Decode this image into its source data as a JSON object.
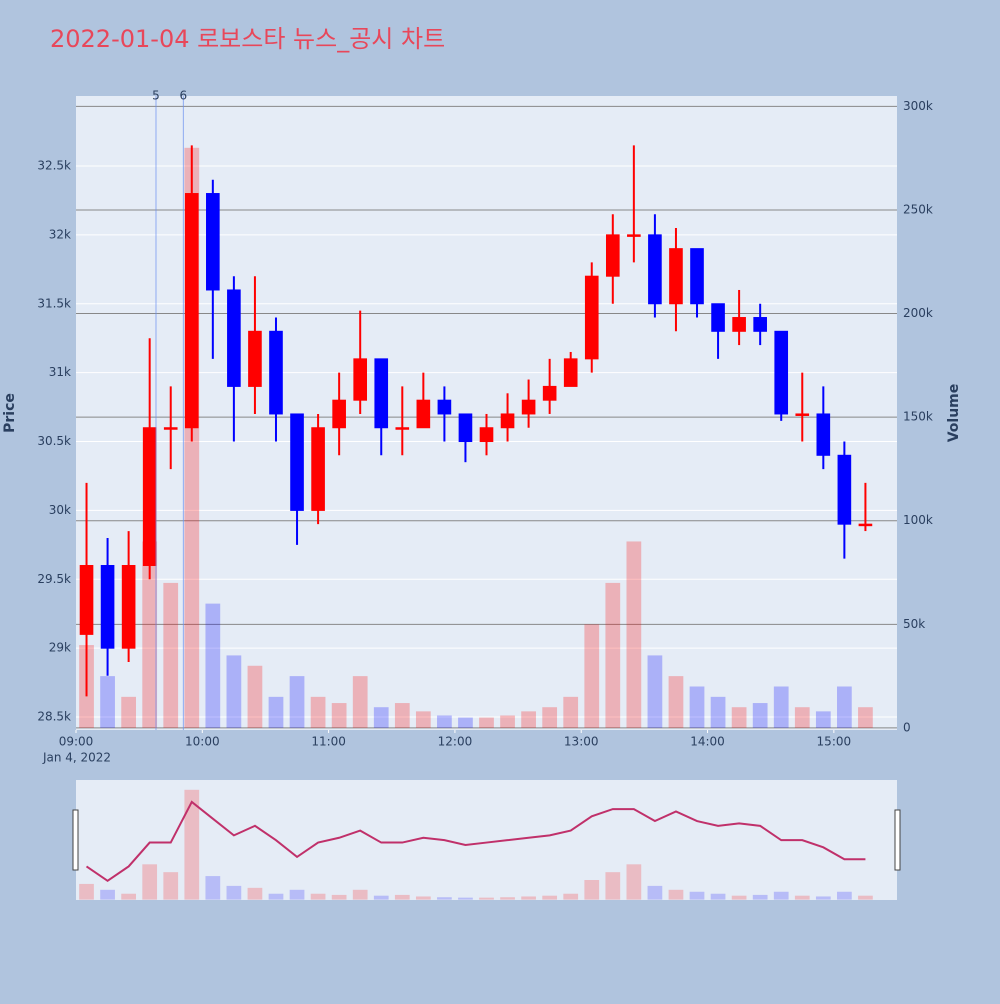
{
  "chart_data": {
    "type": "candlestick",
    "title": "2022-01-04 로보스타 뉴스_공시 차트",
    "y_label": "Price",
    "y2_label": "Volume",
    "x_sublabel": "Jan 4, 2022",
    "increasing_color": "#ff0000",
    "decreasing_color": "#0000ff",
    "x": [
      "2022-01-04 09:00",
      "2022-01-04 09:10",
      "2022-01-04 09:20",
      "2022-01-04 09:30",
      "2022-01-04 09:40",
      "2022-01-04 09:50",
      "2022-01-04 10:00",
      "2022-01-04 10:10",
      "2022-01-04 10:20",
      "2022-01-04 10:30",
      "2022-01-04 10:40",
      "2022-01-04 10:50",
      "2022-01-04 11:00",
      "2022-01-04 11:10",
      "2022-01-04 11:20",
      "2022-01-04 11:30",
      "2022-01-04 11:40",
      "2022-01-04 11:50",
      "2022-01-04 12:00",
      "2022-01-04 12:10",
      "2022-01-04 12:20",
      "2022-01-04 12:30",
      "2022-01-04 12:40",
      "2022-01-04 12:50",
      "2022-01-04 13:00",
      "2022-01-04 13:10",
      "2022-01-04 13:20",
      "2022-01-04 13:30",
      "2022-01-04 13:40",
      "2022-01-04 13:50",
      "2022-01-04 14:00",
      "2022-01-04 14:10",
      "2022-01-04 14:20",
      "2022-01-04 14:30",
      "2022-01-04 14:40",
      "2022-01-04 14:50",
      "2022-01-04 15:00",
      "2022-01-04 15:10"
    ],
    "open": [
      29100,
      29600,
      29000,
      29600,
      30600,
      30600,
      32300,
      31600,
      30900,
      31300,
      30700,
      30000,
      30600,
      30800,
      31100,
      30600,
      30600,
      30800,
      30700,
      30500,
      30600,
      30700,
      30800,
      30900,
      31100,
      31700,
      32000,
      32000,
      31500,
      31900,
      31500,
      31300,
      31400,
      31300,
      30700,
      30700,
      30400,
      29900
    ],
    "high": [
      30200,
      29800,
      29850,
      31250,
      30900,
      32650,
      32400,
      31700,
      31700,
      31400,
      30700,
      30700,
      31000,
      31450,
      31100,
      30900,
      31000,
      30900,
      30700,
      30700,
      30850,
      30950,
      31100,
      31150,
      31800,
      32150,
      32650,
      32150,
      32050,
      31900,
      31500,
      31600,
      31500,
      31300,
      31000,
      30900,
      30500,
      30200
    ],
    "low": [
      28650,
      28800,
      28900,
      29500,
      30300,
      30500,
      31100,
      30500,
      30700,
      30500,
      29750,
      29900,
      30400,
      30700,
      30400,
      30400,
      30600,
      30500,
      30350,
      30400,
      30500,
      30600,
      30700,
      30900,
      31000,
      31500,
      31800,
      31400,
      31300,
      31400,
      31100,
      31200,
      31200,
      30650,
      30500,
      30300,
      29650,
      29850
    ],
    "close": [
      29600,
      29000,
      29600,
      30600,
      30600,
      32300,
      31600,
      30900,
      31300,
      30700,
      30000,
      30600,
      30800,
      31100,
      30600,
      30600,
      30800,
      30700,
      30500,
      30600,
      30700,
      30800,
      30900,
      31100,
      31700,
      32000,
      32000,
      31500,
      31900,
      31500,
      31300,
      31400,
      31300,
      30700,
      30700,
      30400,
      29900,
      29900
    ],
    "volume": [
      40000,
      25000,
      15000,
      90000,
      70000,
      280000,
      60000,
      35000,
      30000,
      15000,
      25000,
      15000,
      12000,
      25000,
      10000,
      12000,
      8000,
      6000,
      5000,
      5000,
      6000,
      8000,
      10000,
      15000,
      50000,
      70000,
      90000,
      35000,
      25000,
      20000,
      15000,
      10000,
      12000,
      20000,
      10000,
      8000,
      20000,
      10000
    ],
    "xlim": [
      "2022-01-04 09:00",
      "2022-01-04 15:30"
    ],
    "xticks": [
      {
        "value": "2022-01-04 09:00",
        "label": "09:00"
      },
      {
        "value": "2022-01-04 10:00",
        "label": "10:00"
      },
      {
        "value": "2022-01-04 11:00",
        "label": "11:00"
      },
      {
        "value": "2022-01-04 12:00",
        "label": "12:00"
      },
      {
        "value": "2022-01-04 13:00",
        "label": "13:00"
      },
      {
        "value": "2022-01-04 14:00",
        "label": "14:00"
      },
      {
        "value": "2022-01-04 15:00",
        "label": "15:00"
      }
    ],
    "ylim": [
      28406,
      33008
    ],
    "yticks": [
      {
        "value": 28500,
        "label": "28.5k"
      },
      {
        "value": 29000,
        "label": "29k"
      },
      {
        "value": 29500,
        "label": "29.5k"
      },
      {
        "value": 30000,
        "label": "30k"
      },
      {
        "value": 30500,
        "label": "30.5k"
      },
      {
        "value": 31000,
        "label": "31k"
      },
      {
        "value": 31500,
        "label": "31.5k"
      },
      {
        "value": 32000,
        "label": "32k"
      },
      {
        "value": 32500,
        "label": "32.5k"
      }
    ],
    "y2lim": [
      -1000,
      305000
    ],
    "y2ticks": [
      0,
      {
        "value": 50000,
        "label": "50k"
      },
      {
        "value": 100000,
        "label": "100k"
      },
      {
        "value": 150000,
        "label": "150k"
      },
      {
        "value": 200000,
        "label": "200k"
      },
      {
        "value": 250000,
        "label": "250k"
      },
      {
        "value": 300000,
        "label": "300k"
      }
    ],
    "annotations": [
      {
        "x": "2022-01-04 09:38",
        "text": "5"
      },
      {
        "x": "2022-01-04 09:51",
        "text": "6"
      }
    ]
  }
}
